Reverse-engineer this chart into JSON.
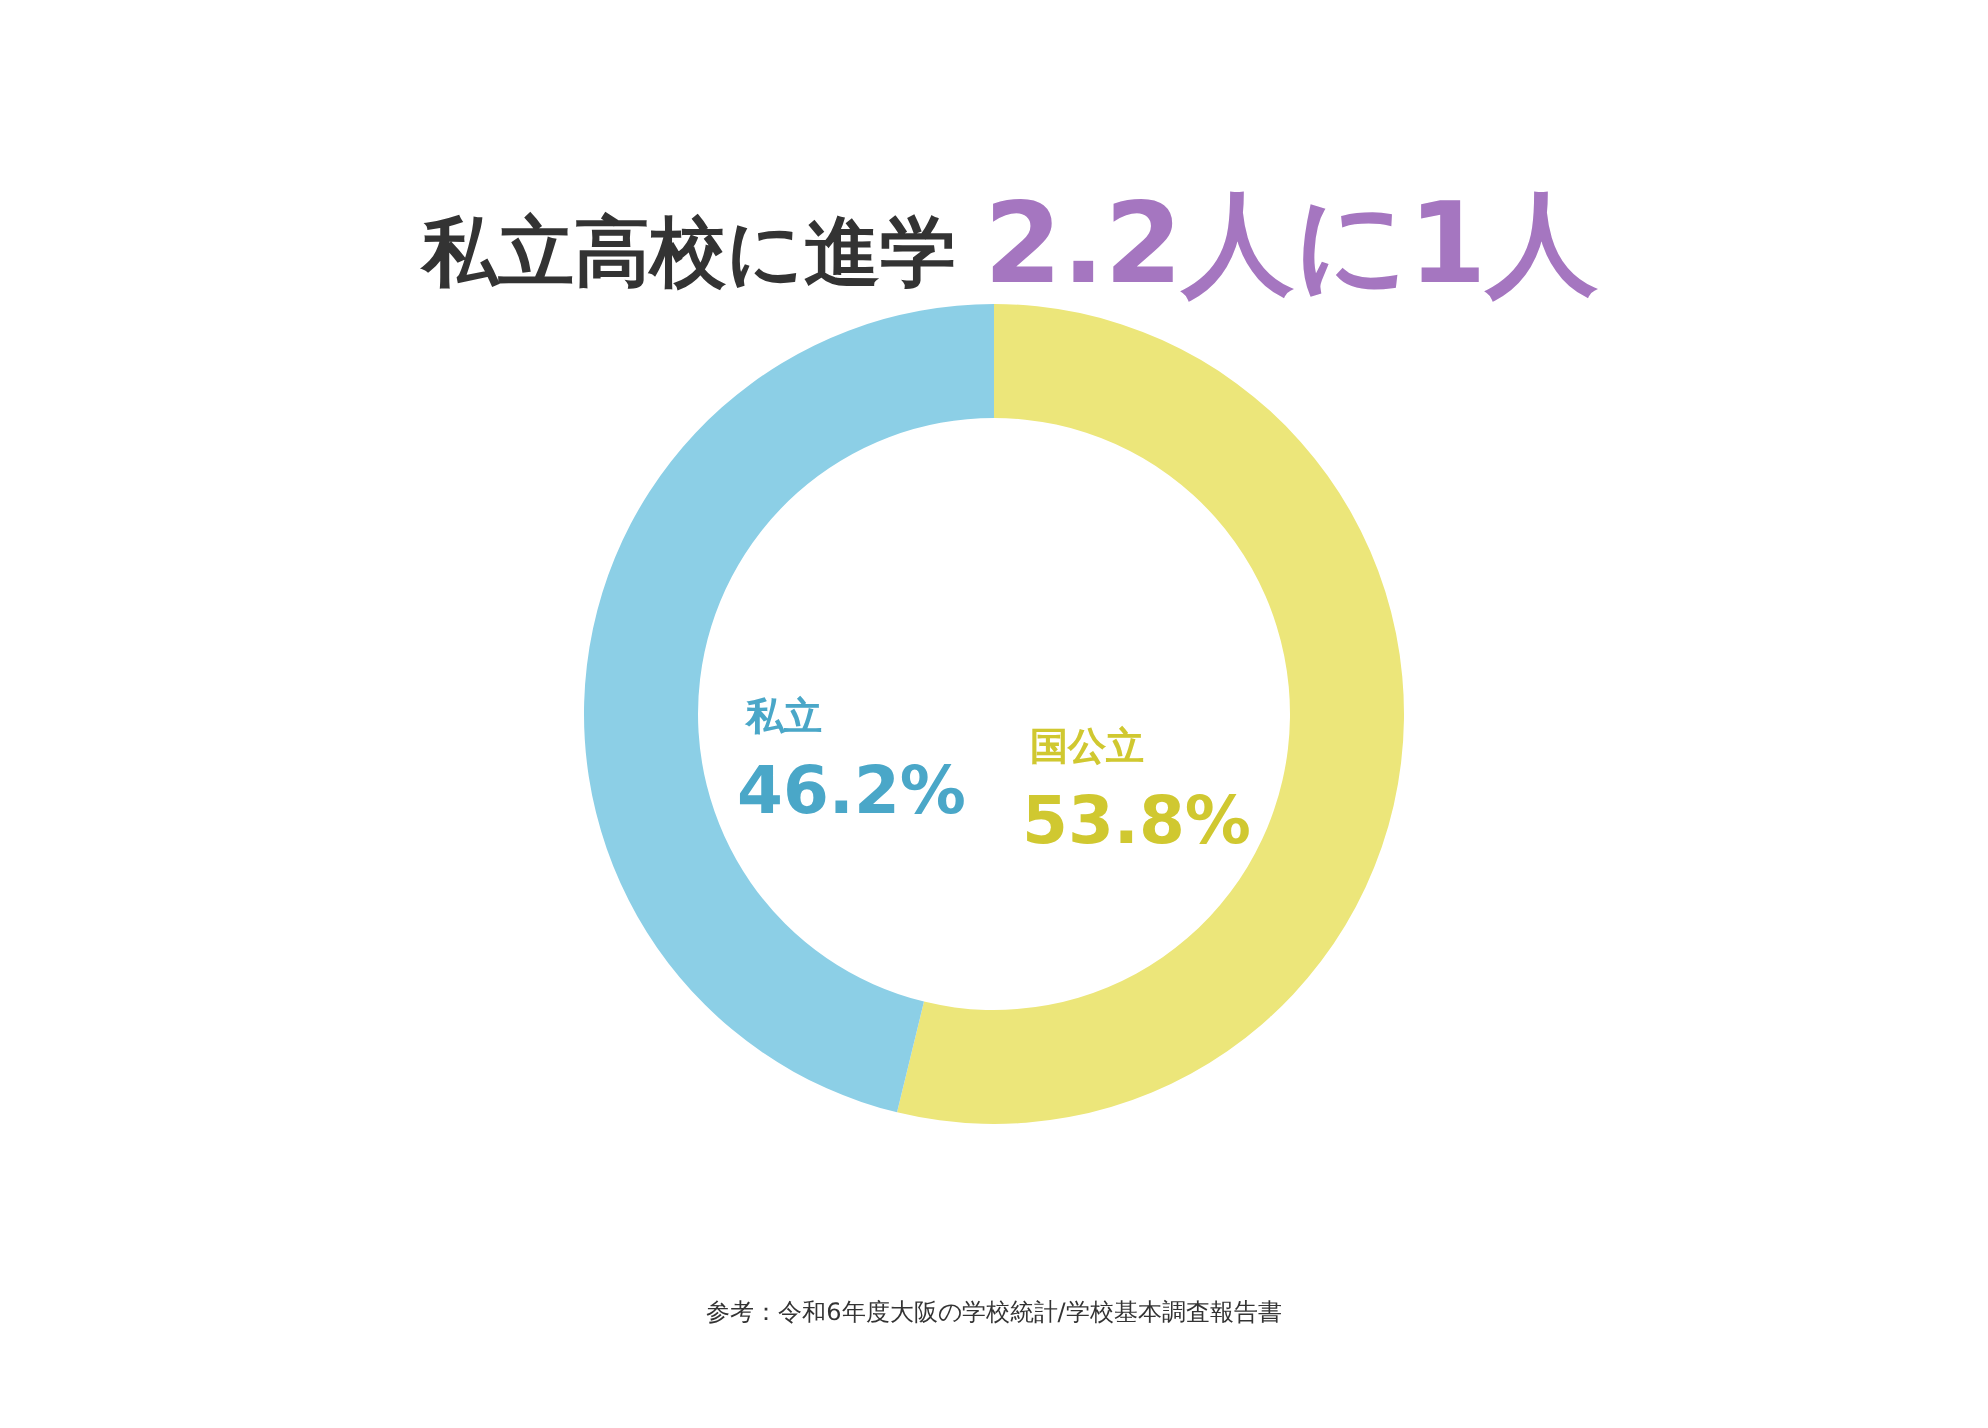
{
  "chart_data": {
    "type": "donut",
    "title": "私立高校に進学",
    "subtitle": "2.2人に1人",
    "categories": [
      "国公立",
      "私立"
    ],
    "values": [
      53.8,
      46.2
    ],
    "colors": [
      "#ece67a",
      "#8ccfe6"
    ],
    "value_labels": [
      "53.8%",
      "46.2%"
    ],
    "annotations": [
      "参考：令和6年度大阪の学校統計/学校基本調査報告書"
    ]
  }
}
